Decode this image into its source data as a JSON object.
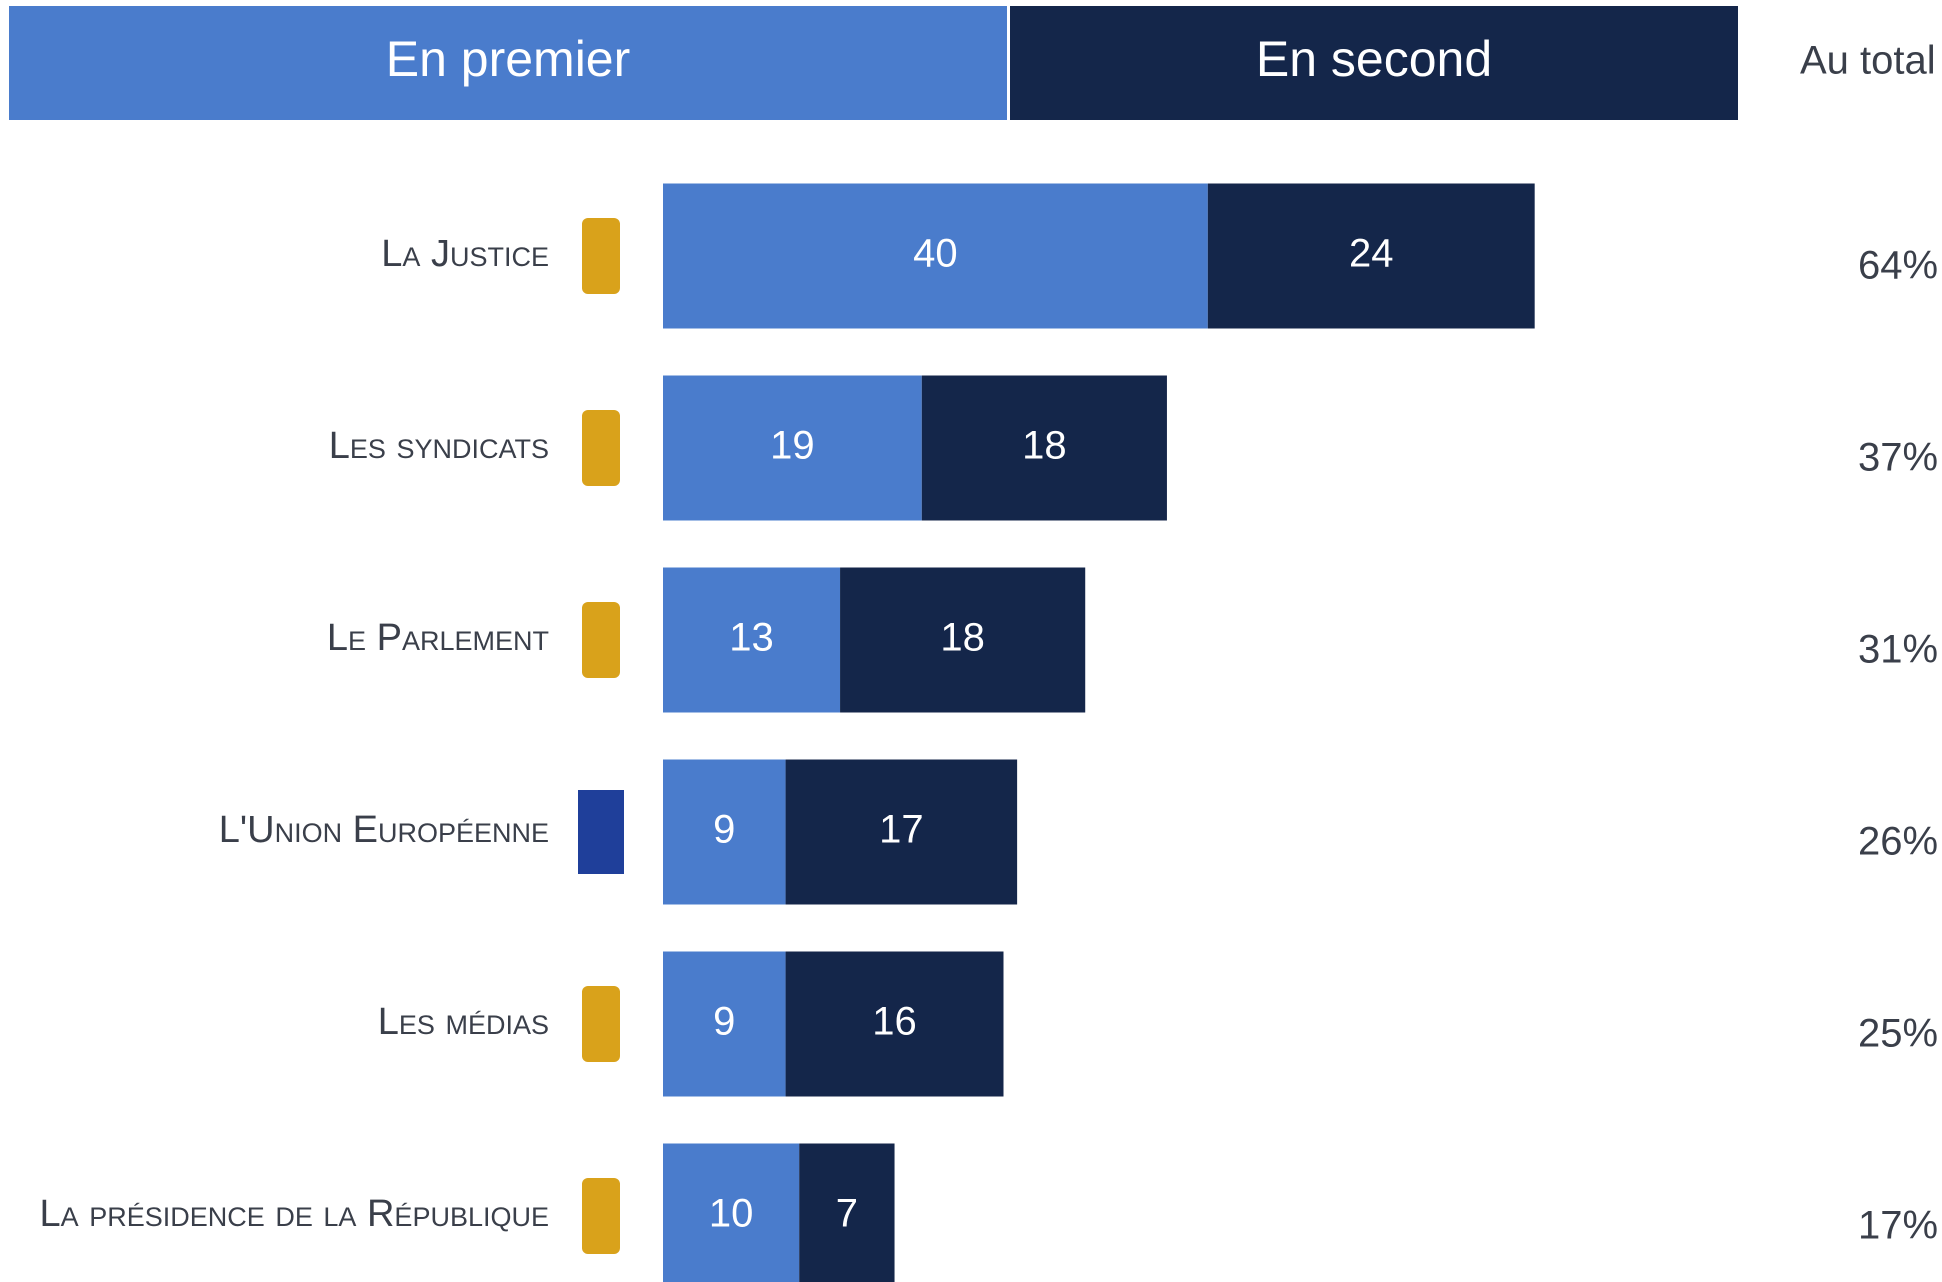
{
  "chart_data": {
    "type": "stacked-bar",
    "categories": [
      "La Justice",
      "Les syndicats",
      "Le Parlement",
      "L'Union Européenne",
      "Les médias",
      "La présidence de la République"
    ],
    "series": [
      {
        "name": "En premier",
        "color": "#4a7ccc",
        "values": [
          40,
          19,
          13,
          9,
          9,
          10
        ]
      },
      {
        "name": "En second",
        "color": "#14264a",
        "values": [
          24,
          18,
          18,
          17,
          16,
          7
        ]
      }
    ],
    "totals": {
      "name": "Au total",
      "values": [
        64,
        37,
        31,
        26,
        25,
        17
      ],
      "value_labels": [
        "64%",
        "37%",
        "31%",
        "26%",
        "25%",
        "17%"
      ]
    }
  }
}
